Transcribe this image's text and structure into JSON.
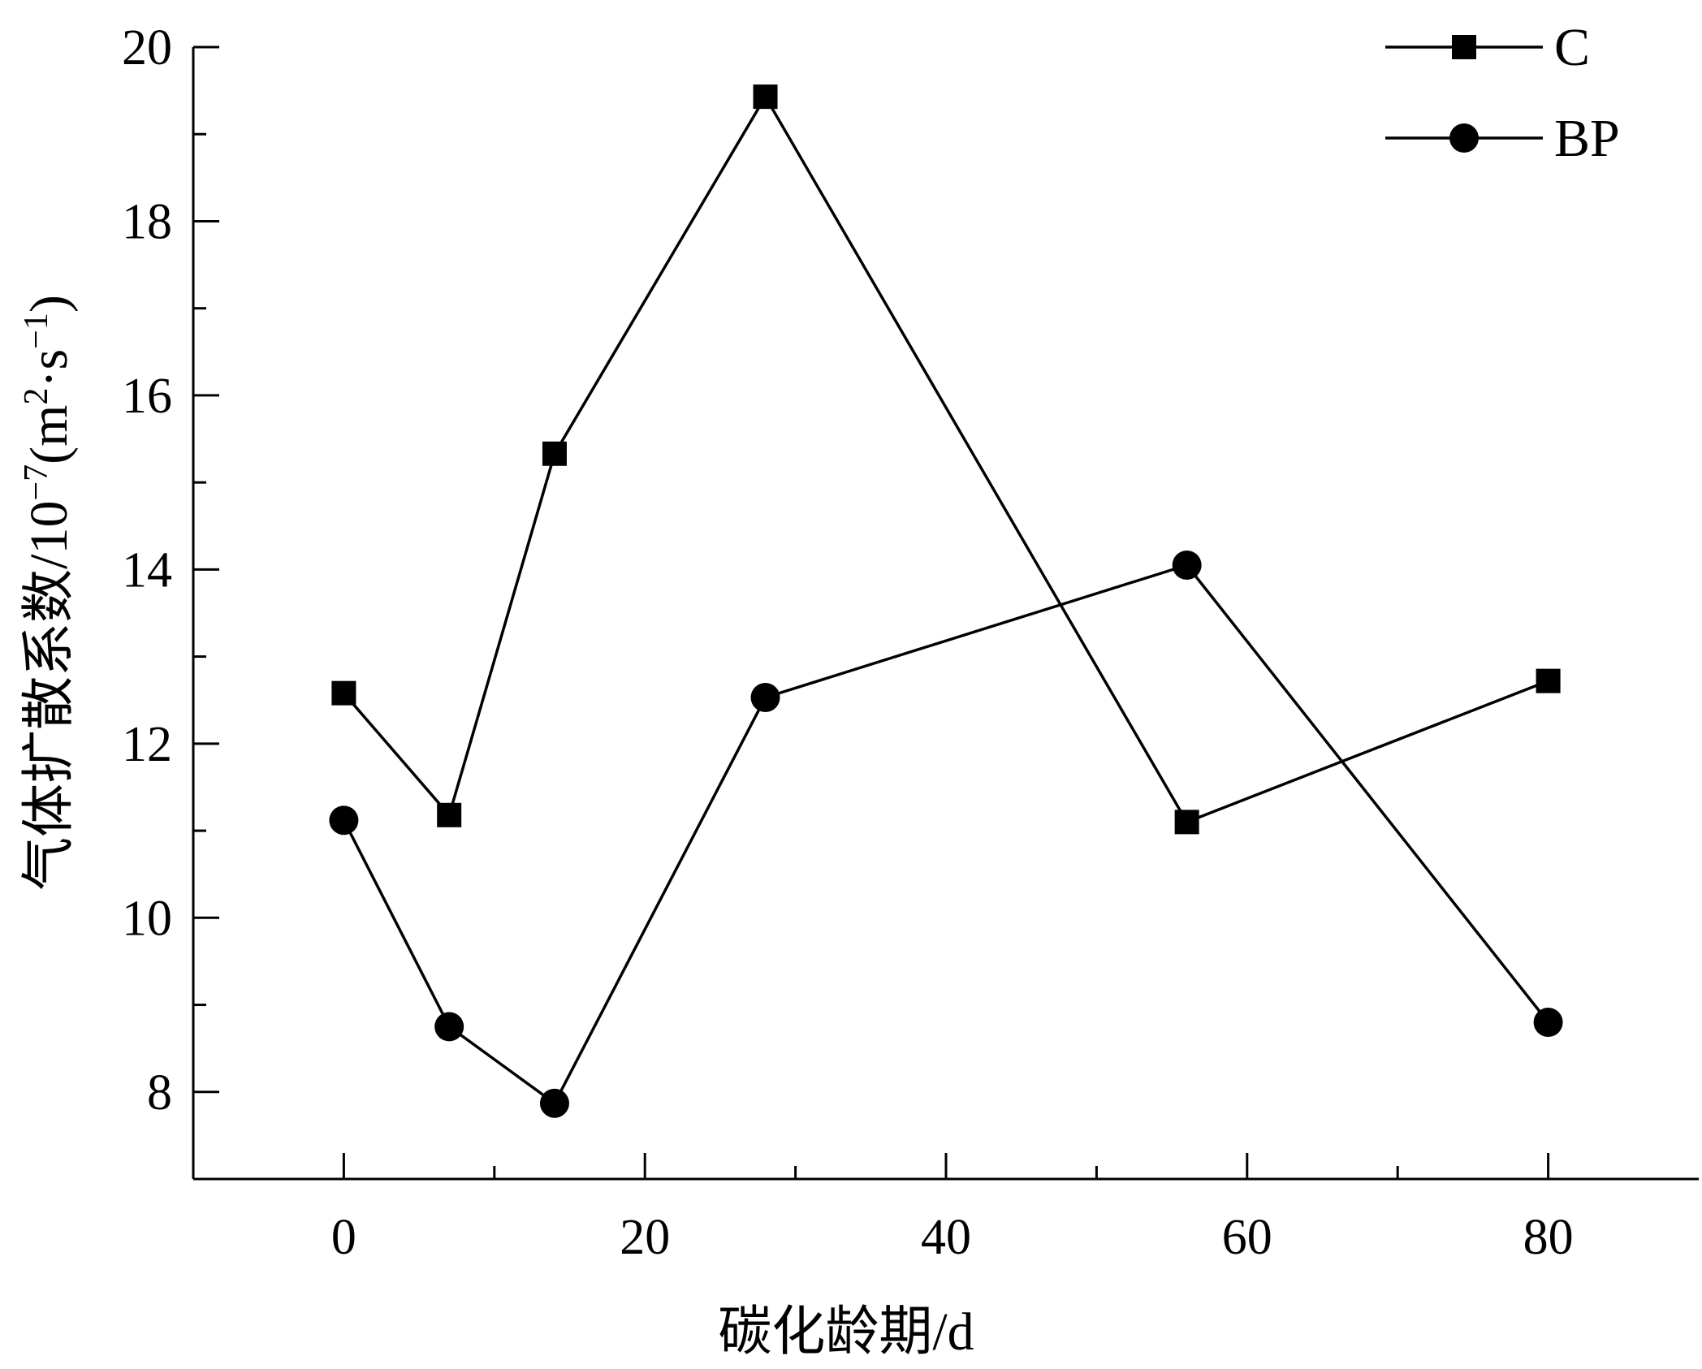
{
  "chart_data": {
    "type": "line",
    "title": "",
    "xlabel": "碳化龄期/d",
    "ylabel": {
      "prefix": "气体扩散系数/10",
      "exp1": "−7",
      "mid": "(m",
      "exp2": "2",
      "mid2": "·s",
      "exp3": "−1",
      "suffix": ")"
    },
    "xlim": [
      -10,
      90
    ],
    "ylim": [
      7,
      20
    ],
    "xticks": [
      0,
      20,
      40,
      60,
      80
    ],
    "xminor_ticks": [
      10,
      30,
      50,
      70
    ],
    "yticks": [
      8,
      10,
      12,
      14,
      16,
      18,
      20
    ],
    "yminor_ticks": [
      9,
      11,
      13,
      15,
      17,
      19
    ],
    "grid": false,
    "legend_position": "top-right",
    "series": [
      {
        "name": "C",
        "marker": "square",
        "color": "#000000",
        "x": [
          0,
          7,
          14,
          28,
          56,
          80
        ],
        "y": [
          12.58,
          11.18,
          15.33,
          19.43,
          11.1,
          12.72
        ]
      },
      {
        "name": "BP",
        "marker": "circle",
        "color": "#000000",
        "x": [
          0,
          7,
          14,
          28,
          56,
          80
        ],
        "y": [
          11.12,
          8.75,
          7.87,
          12.53,
          14.05,
          8.8
        ]
      }
    ]
  }
}
